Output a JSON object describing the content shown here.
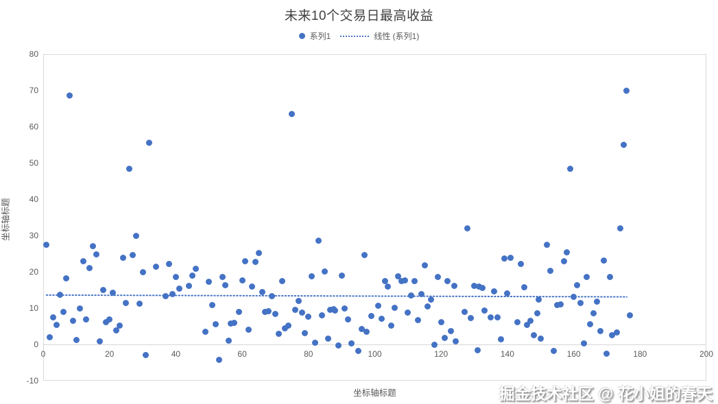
{
  "title": "未来10个交易日最高收益",
  "legend": {
    "series_label": "系列1",
    "trend_label": "线性 (系列1)"
  },
  "axes": {
    "x_title": "坐标轴标题",
    "y_title": "坐标轴标题"
  },
  "watermark": "掘金技术社区 @ 花小姐的春天",
  "colors": {
    "series": "#4472C4",
    "trend": "#4472C4",
    "title_text": "#404040",
    "axis_text": "#595959",
    "plot_border": "#D9D9D9",
    "zero_line": "#D6D6D6"
  },
  "chart_data": {
    "type": "scatter",
    "title": "未来10个交易日最高收益",
    "xlabel": "坐标轴标题",
    "ylabel": "坐标轴标题",
    "xlim": [
      0,
      200
    ],
    "ylim": [
      -10,
      80
    ],
    "x_ticks": [
      0,
      20,
      40,
      60,
      80,
      100,
      120,
      140,
      160,
      180,
      200
    ],
    "y_ticks": [
      -10,
      0,
      10,
      20,
      30,
      40,
      50,
      60,
      70,
      80
    ],
    "grid": false,
    "legend_position": "top",
    "series": [
      {
        "name": "系列1",
        "marker": "circle",
        "color": "#4472C4",
        "points": [
          [
            1,
            27.5
          ],
          [
            2,
            1.9
          ],
          [
            3,
            7.5
          ],
          [
            4,
            5.3
          ],
          [
            5,
            13.7
          ],
          [
            6,
            8.9
          ],
          [
            7,
            18.3
          ],
          [
            8,
            68.5
          ],
          [
            9,
            6.5
          ],
          [
            10,
            1.3
          ],
          [
            11,
            9.9
          ],
          [
            12,
            23
          ],
          [
            13,
            6.8
          ],
          [
            14,
            21.1
          ],
          [
            15,
            27
          ],
          [
            16,
            24.8
          ],
          [
            17,
            0.9
          ],
          [
            18,
            15
          ],
          [
            19,
            6.1
          ],
          [
            20,
            6.8
          ],
          [
            21,
            14.2
          ],
          [
            22,
            3.9
          ],
          [
            23,
            5.2
          ],
          [
            24,
            23.8
          ],
          [
            25,
            11.5
          ],
          [
            26,
            48.4
          ],
          [
            27,
            24.6
          ],
          [
            28,
            30
          ],
          [
            29,
            11.3
          ],
          [
            30,
            20
          ],
          [
            31,
            -3
          ],
          [
            32,
            55.5
          ],
          [
            34,
            21.5
          ],
          [
            37,
            13.3
          ],
          [
            38,
            22.1
          ],
          [
            39,
            13.8
          ],
          [
            40,
            18.6
          ],
          [
            41,
            15.3
          ],
          [
            44,
            16.2
          ],
          [
            45,
            19
          ],
          [
            46,
            20.9
          ],
          [
            49,
            3.5
          ],
          [
            50,
            17.2
          ],
          [
            51,
            10.8
          ],
          [
            52,
            5.6
          ],
          [
            53,
            -4.3
          ],
          [
            54,
            18.5
          ],
          [
            55,
            16.4
          ],
          [
            56,
            1
          ],
          [
            56.5,
            5.8
          ],
          [
            57.5,
            5.9
          ],
          [
            59,
            8.9
          ],
          [
            60,
            17.7
          ],
          [
            61,
            23
          ],
          [
            62,
            4
          ],
          [
            63,
            15.9
          ],
          [
            64,
            22.8
          ],
          [
            65,
            25.2
          ],
          [
            66,
            14.5
          ],
          [
            67,
            8.9
          ],
          [
            68,
            9.2
          ],
          [
            69,
            13.3
          ],
          [
            70,
            8.4
          ],
          [
            71,
            2.9
          ],
          [
            72,
            17.4
          ],
          [
            73,
            4.5
          ],
          [
            74,
            5.1
          ],
          [
            75,
            63.4
          ],
          [
            76,
            9.5
          ],
          [
            77,
            11.9
          ],
          [
            78,
            8.7
          ],
          [
            79,
            3.2
          ],
          [
            80,
            7.6
          ],
          [
            81,
            18.7
          ],
          [
            82,
            0.5
          ],
          [
            83,
            28.5
          ],
          [
            84,
            8
          ],
          [
            85,
            20.1
          ],
          [
            86,
            1.6
          ],
          [
            86.5,
            9.6
          ],
          [
            87.5,
            9.8
          ],
          [
            88,
            9.4
          ],
          [
            89,
            -0.3
          ],
          [
            90,
            19
          ],
          [
            91,
            10
          ],
          [
            92,
            6.9
          ],
          [
            93,
            0.3
          ],
          [
            95,
            -1.7
          ],
          [
            96,
            4.2
          ],
          [
            97,
            24.7
          ],
          [
            97.5,
            3.4
          ],
          [
            99,
            7.9
          ],
          [
            101,
            10.6
          ],
          [
            102,
            7
          ],
          [
            103,
            17.5
          ],
          [
            104,
            15.9
          ],
          [
            105,
            5.2
          ],
          [
            106,
            10.1
          ],
          [
            107,
            18.7
          ],
          [
            108,
            17.4
          ],
          [
            109,
            17.7
          ],
          [
            110,
            8.7
          ],
          [
            111,
            13.5
          ],
          [
            112,
            17.4
          ],
          [
            113,
            6.7
          ],
          [
            114,
            13.9
          ],
          [
            115,
            21.8
          ],
          [
            116,
            10.4
          ],
          [
            117,
            12.4
          ],
          [
            118,
            0
          ],
          [
            119,
            18.5
          ],
          [
            120,
            6.2
          ],
          [
            121,
            1.7
          ],
          [
            122,
            17.4
          ],
          [
            123,
            3.6
          ],
          [
            124,
            16.1
          ],
          [
            124.5,
            0.8
          ],
          [
            127,
            8.9
          ],
          [
            128,
            32
          ],
          [
            129,
            7.2
          ],
          [
            130,
            16.1
          ],
          [
            131,
            -1.6
          ],
          [
            131.5,
            15.9
          ],
          [
            132.5,
            15.5
          ],
          [
            133,
            9.4
          ],
          [
            135,
            7.4
          ],
          [
            136,
            14.7
          ],
          [
            137,
            7.5
          ],
          [
            138,
            1.4
          ],
          [
            139,
            23.6
          ],
          [
            140,
            14.1
          ],
          [
            141,
            23.8
          ],
          [
            143,
            6.2
          ],
          [
            144,
            22.2
          ],
          [
            145,
            15.8
          ],
          [
            146,
            5.3
          ],
          [
            147,
            6.5
          ],
          [
            148,
            2.5
          ],
          [
            149,
            8.6
          ],
          [
            149.5,
            12.3
          ],
          [
            150,
            1.6
          ],
          [
            152,
            27.4
          ],
          [
            153,
            20.3
          ],
          [
            154,
            -1.8
          ],
          [
            155,
            10.8
          ],
          [
            156,
            11.1
          ],
          [
            157,
            23
          ],
          [
            158,
            25.3
          ],
          [
            159,
            48.4
          ],
          [
            160,
            13.2
          ],
          [
            161,
            16.4
          ],
          [
            162,
            11.4
          ],
          [
            163,
            0.3
          ],
          [
            164,
            18.6
          ],
          [
            165,
            5.5
          ],
          [
            166,
            8.6
          ],
          [
            167,
            11.8
          ],
          [
            168,
            3.7
          ],
          [
            169,
            23.1
          ],
          [
            170,
            -2.5
          ],
          [
            171,
            18.6
          ],
          [
            171.5,
            2.6
          ],
          [
            173,
            3.3
          ],
          [
            174,
            32
          ],
          [
            175,
            55
          ],
          [
            176,
            70
          ],
          [
            177,
            8
          ]
        ]
      }
    ],
    "trendline": {
      "name": "线性 (系列1)",
      "style": "dotted",
      "color": "#4472C4",
      "x1": 1,
      "y1": 13.6,
      "x2": 176,
      "y2": 13.1
    }
  }
}
